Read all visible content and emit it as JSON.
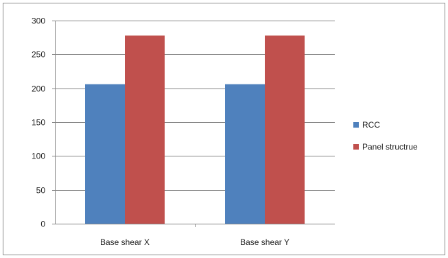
{
  "chart_data": {
    "type": "bar",
    "categories": [
      "Base shear X",
      "Base shear Y"
    ],
    "series": [
      {
        "name": "RCC",
        "values": [
          206,
          206
        ],
        "color": "#4f81bd"
      },
      {
        "name": "Panel structrue",
        "values": [
          278,
          278
        ],
        "color": "#c0504d"
      }
    ],
    "ylim": [
      0,
      300
    ],
    "yticks": [
      0,
      50,
      100,
      150,
      200,
      250,
      300
    ],
    "grid": true,
    "legend": "right",
    "title": "",
    "xlabel": "",
    "ylabel": ""
  }
}
